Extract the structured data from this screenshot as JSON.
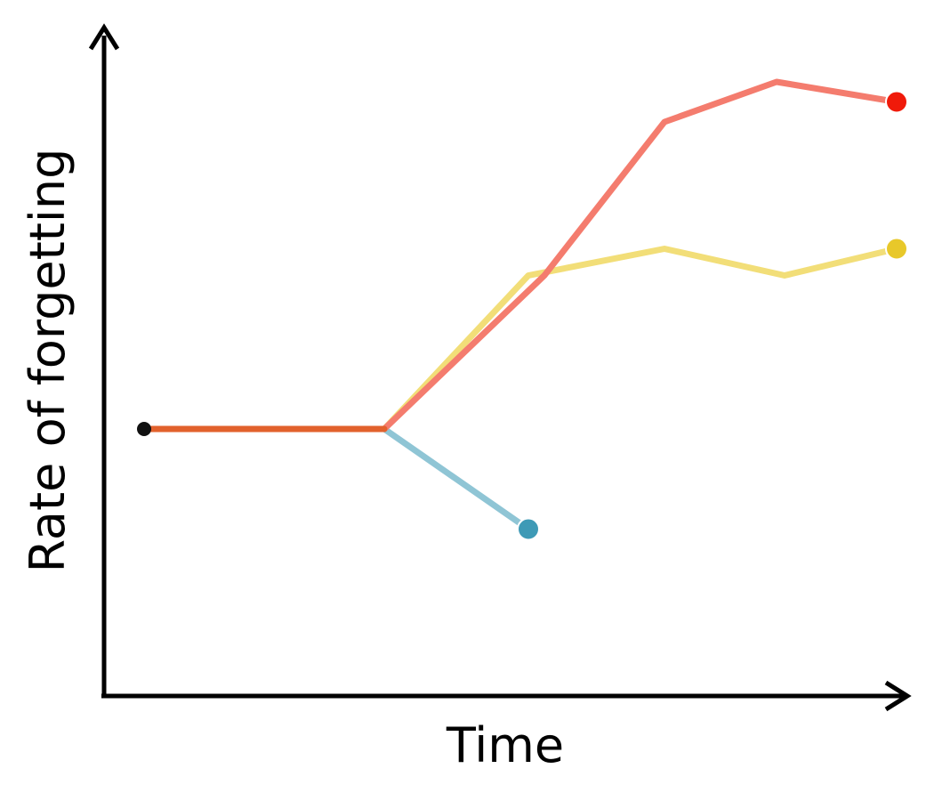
{
  "chart_data": {
    "type": "line",
    "title": "",
    "xlabel": "Time",
    "ylabel": "Rate of forgetting",
    "xlim": [
      0,
      10
    ],
    "ylim": [
      0,
      10
    ],
    "grid": false,
    "legend": "none",
    "start_point": {
      "x": 0.5,
      "y": 4,
      "color": "#111111"
    },
    "series": [
      {
        "color": "#F47C6E",
        "end_color": "#F01A0A",
        "points": [
          [
            0.5,
            4
          ],
          [
            3.5,
            4
          ],
          [
            5.5,
            6.3
          ],
          [
            7.0,
            8.6
          ],
          [
            8.4,
            9.2
          ],
          [
            9.9,
            8.9
          ]
        ]
      },
      {
        "color": "#F2DE78",
        "end_color": "#E8C82A",
        "points": [
          [
            0.5,
            4
          ],
          [
            3.5,
            4
          ],
          [
            5.3,
            6.3
          ],
          [
            7.0,
            6.7
          ],
          [
            8.5,
            6.3
          ],
          [
            9.9,
            6.7
          ]
        ]
      },
      {
        "color": "#8FC5D5",
        "end_color": "#3E9AB6",
        "points": [
          [
            0.5,
            4
          ],
          [
            3.5,
            4
          ],
          [
            5.3,
            2.5
          ]
        ]
      }
    ],
    "shared_segment_color": "#E2612C"
  }
}
